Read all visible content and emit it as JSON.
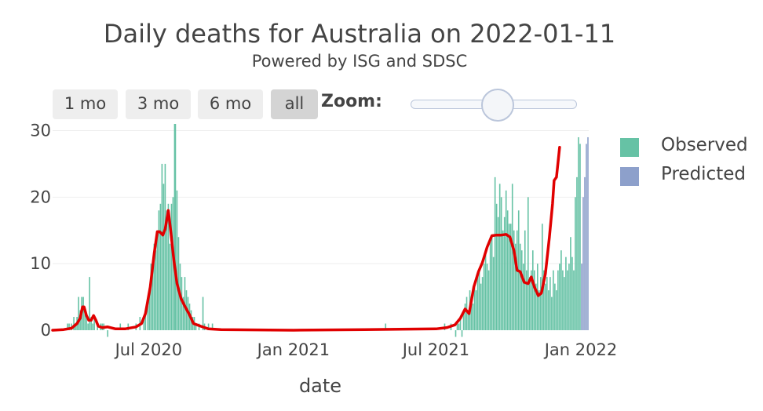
{
  "header": {
    "title": "Daily deaths for Australia on 2022-01-11",
    "subtitle": "Powered by ISG and SDSC"
  },
  "controls": {
    "range_buttons": [
      "1 mo",
      "3 mo",
      "6 mo",
      "all"
    ],
    "active_button": "all",
    "zoom_label": "Zoom:"
  },
  "legend": {
    "items": [
      {
        "label": "Observed",
        "color": "#66c2a5"
      },
      {
        "label": "Predicted",
        "color": "#8da0cb"
      }
    ]
  },
  "colors": {
    "observed": "#66c2a5",
    "predicted": "#8da0cb",
    "trend": "#e00000",
    "grid": "#eeeeee"
  },
  "chart_data": {
    "type": "bar",
    "title": "Daily deaths for Australia on 2022-01-11",
    "subtitle": "Powered by ISG and SDSC",
    "xlabel": "date",
    "ylabel": "",
    "x_range": [
      "2020-03-01",
      "2022-01-11"
    ],
    "ylim": [
      0,
      31
    ],
    "y_ticks": [
      0,
      10,
      20,
      30
    ],
    "x_ticks": [
      {
        "date": "2020-07-01",
        "label": "Jul 2020"
      },
      {
        "date": "2021-01-01",
        "label": "Jan 2021"
      },
      {
        "date": "2021-07-01",
        "label": "Jul 2021"
      },
      {
        "date": "2022-01-01",
        "label": "Jan 2022"
      }
    ],
    "grid": true,
    "legend_position": "right",
    "series": [
      {
        "name": "Observed",
        "kind": "bar",
        "points": [
          [
            "2020-03-20",
            1
          ],
          [
            "2020-03-22",
            1
          ],
          [
            "2020-03-25",
            1
          ],
          [
            "2020-03-28",
            2
          ],
          [
            "2020-03-30",
            1
          ],
          [
            "2020-04-01",
            2
          ],
          [
            "2020-04-03",
            5
          ],
          [
            "2020-04-05",
            3
          ],
          [
            "2020-04-07",
            5
          ],
          [
            "2020-04-09",
            5
          ],
          [
            "2020-04-11",
            3
          ],
          [
            "2020-04-13",
            2
          ],
          [
            "2020-04-15",
            1
          ],
          [
            "2020-04-17",
            8
          ],
          [
            "2020-04-19",
            2
          ],
          [
            "2020-04-21",
            1
          ],
          [
            "2020-04-23",
            2
          ],
          [
            "2020-04-27",
            1
          ],
          [
            "2020-05-01",
            1
          ],
          [
            "2020-05-03",
            1
          ],
          [
            "2020-05-05",
            1
          ],
          [
            "2020-05-10",
            -1
          ],
          [
            "2020-05-26",
            1
          ],
          [
            "2020-06-05",
            1
          ],
          [
            "2020-06-15",
            1
          ],
          [
            "2020-06-20",
            2
          ],
          [
            "2020-06-25",
            2
          ],
          [
            "2020-06-27",
            3
          ],
          [
            "2020-06-30",
            5
          ],
          [
            "2020-07-02",
            6
          ],
          [
            "2020-07-04",
            10
          ],
          [
            "2020-07-06",
            10
          ],
          [
            "2020-07-08",
            13
          ],
          [
            "2020-07-10",
            12
          ],
          [
            "2020-07-12",
            15
          ],
          [
            "2020-07-14",
            18
          ],
          [
            "2020-07-16",
            19
          ],
          [
            "2020-07-18",
            25
          ],
          [
            "2020-07-20",
            22
          ],
          [
            "2020-07-22",
            25
          ],
          [
            "2020-07-24",
            18
          ],
          [
            "2020-07-26",
            19
          ],
          [
            "2020-07-28",
            13
          ],
          [
            "2020-07-30",
            19
          ],
          [
            "2020-08-01",
            20
          ],
          [
            "2020-08-03",
            31
          ],
          [
            "2020-08-04",
            31
          ],
          [
            "2020-08-06",
            21
          ],
          [
            "2020-08-08",
            14
          ],
          [
            "2020-08-10",
            10
          ],
          [
            "2020-08-12",
            8
          ],
          [
            "2020-08-14",
            5
          ],
          [
            "2020-08-16",
            8
          ],
          [
            "2020-08-18",
            6
          ],
          [
            "2020-08-20",
            5
          ],
          [
            "2020-08-22",
            4
          ],
          [
            "2020-08-24",
            3
          ],
          [
            "2020-08-26",
            2
          ],
          [
            "2020-08-28",
            2
          ],
          [
            "2020-08-30",
            1
          ],
          [
            "2020-09-03",
            1
          ],
          [
            "2020-09-08",
            5
          ],
          [
            "2020-09-10",
            1
          ],
          [
            "2020-09-15",
            1
          ],
          [
            "2020-09-20",
            1
          ],
          [
            "2021-04-28",
            1
          ],
          [
            "2021-07-12",
            1
          ],
          [
            "2021-07-20",
            1
          ],
          [
            "2021-07-26",
            -1
          ],
          [
            "2021-07-28",
            1
          ],
          [
            "2021-07-30",
            1
          ],
          [
            "2021-08-01",
            2
          ],
          [
            "2021-08-03",
            -1
          ],
          [
            "2021-08-05",
            3
          ],
          [
            "2021-08-07",
            4
          ],
          [
            "2021-08-09",
            5
          ],
          [
            "2021-08-11",
            3
          ],
          [
            "2021-08-13",
            6
          ],
          [
            "2021-08-15",
            5
          ],
          [
            "2021-08-17",
            4
          ],
          [
            "2021-08-19",
            7
          ],
          [
            "2021-08-21",
            6
          ],
          [
            "2021-08-23",
            8
          ],
          [
            "2021-08-25",
            9
          ],
          [
            "2021-08-27",
            7
          ],
          [
            "2021-08-29",
            8
          ],
          [
            "2021-08-31",
            10
          ],
          [
            "2021-09-02",
            12
          ],
          [
            "2021-09-04",
            10
          ],
          [
            "2021-09-06",
            9
          ],
          [
            "2021-09-08",
            14
          ],
          [
            "2021-09-10",
            14
          ],
          [
            "2021-09-12",
            11
          ],
          [
            "2021-09-14",
            23
          ],
          [
            "2021-09-16",
            19
          ],
          [
            "2021-09-18",
            17
          ],
          [
            "2021-09-20",
            22
          ],
          [
            "2021-09-22",
            20
          ],
          [
            "2021-09-24",
            15
          ],
          [
            "2021-09-26",
            17
          ],
          [
            "2021-09-28",
            21
          ],
          [
            "2021-09-30",
            18
          ],
          [
            "2021-10-02",
            16
          ],
          [
            "2021-10-04",
            16
          ],
          [
            "2021-10-06",
            22
          ],
          [
            "2021-10-08",
            15
          ],
          [
            "2021-10-10",
            13
          ],
          [
            "2021-10-12",
            15
          ],
          [
            "2021-10-14",
            18
          ],
          [
            "2021-10-16",
            13
          ],
          [
            "2021-10-18",
            12
          ],
          [
            "2021-10-20",
            10
          ],
          [
            "2021-10-22",
            15
          ],
          [
            "2021-10-24",
            9
          ],
          [
            "2021-10-26",
            20
          ],
          [
            "2021-10-28",
            8
          ],
          [
            "2021-10-30",
            9
          ],
          [
            "2021-11-01",
            12
          ],
          [
            "2021-11-03",
            9
          ],
          [
            "2021-11-05",
            7
          ],
          [
            "2021-11-07",
            10
          ],
          [
            "2021-11-09",
            6
          ],
          [
            "2021-11-11",
            8
          ],
          [
            "2021-11-13",
            16
          ],
          [
            "2021-11-15",
            9
          ],
          [
            "2021-11-17",
            7
          ],
          [
            "2021-11-19",
            8
          ],
          [
            "2021-11-21",
            6
          ],
          [
            "2021-11-23",
            8
          ],
          [
            "2021-11-25",
            5
          ],
          [
            "2021-11-27",
            9
          ],
          [
            "2021-11-29",
            7
          ],
          [
            "2021-12-01",
            6
          ],
          [
            "2021-12-03",
            9
          ],
          [
            "2021-12-05",
            10
          ],
          [
            "2021-12-07",
            12
          ],
          [
            "2021-12-09",
            9
          ],
          [
            "2021-12-11",
            8
          ],
          [
            "2021-12-13",
            11
          ],
          [
            "2021-12-15",
            9
          ],
          [
            "2021-12-17",
            10
          ],
          [
            "2021-12-19",
            14
          ],
          [
            "2021-12-21",
            11
          ],
          [
            "2021-12-23",
            9
          ],
          [
            "2021-12-25",
            20
          ],
          [
            "2021-12-27",
            23
          ],
          [
            "2021-12-29",
            29
          ],
          [
            "2021-12-31",
            28
          ]
        ]
      },
      {
        "name": "Predicted",
        "kind": "bar",
        "points": [
          [
            "2022-01-02",
            10
          ],
          [
            "2022-01-04",
            20
          ],
          [
            "2022-01-06",
            23
          ],
          [
            "2022-01-08",
            28
          ],
          [
            "2022-01-10",
            29
          ]
        ]
      },
      {
        "name": "Trend",
        "kind": "line",
        "points": [
          [
            "2020-03-01",
            0
          ],
          [
            "2020-03-15",
            0.1
          ],
          [
            "2020-03-25",
            0.3
          ],
          [
            "2020-04-01",
            1.0
          ],
          [
            "2020-04-05",
            1.8
          ],
          [
            "2020-04-08",
            3.5
          ],
          [
            "2020-04-10",
            3.5
          ],
          [
            "2020-04-13",
            2.2
          ],
          [
            "2020-04-16",
            1.5
          ],
          [
            "2020-04-19",
            1.5
          ],
          [
            "2020-04-22",
            2.2
          ],
          [
            "2020-04-25",
            1.5
          ],
          [
            "2020-04-28",
            0.6
          ],
          [
            "2020-05-03",
            0.4
          ],
          [
            "2020-05-10",
            0.5
          ],
          [
            "2020-05-20",
            0.2
          ],
          [
            "2020-06-01",
            0.2
          ],
          [
            "2020-06-15",
            0.5
          ],
          [
            "2020-06-22",
            1.0
          ],
          [
            "2020-06-27",
            2.5
          ],
          [
            "2020-07-03",
            6.5
          ],
          [
            "2020-07-08",
            11.5
          ],
          [
            "2020-07-12",
            14.8
          ],
          [
            "2020-07-15",
            14.8
          ],
          [
            "2020-07-19",
            14.3
          ],
          [
            "2020-07-22",
            15.2
          ],
          [
            "2020-07-26",
            18.0
          ],
          [
            "2020-07-29",
            15.0
          ],
          [
            "2020-08-02",
            10.5
          ],
          [
            "2020-08-06",
            7.0
          ],
          [
            "2020-08-11",
            4.8
          ],
          [
            "2020-08-16",
            3.6
          ],
          [
            "2020-08-22",
            2.3
          ],
          [
            "2020-08-27",
            1.0
          ],
          [
            "2020-09-05",
            0.6
          ],
          [
            "2020-09-15",
            0.2
          ],
          [
            "2020-10-01",
            0.1
          ],
          [
            "2021-01-01",
            0.0
          ],
          [
            "2021-04-01",
            0.1
          ],
          [
            "2021-07-01",
            0.2
          ],
          [
            "2021-07-15",
            0.4
          ],
          [
            "2021-07-25",
            0.8
          ],
          [
            "2021-08-01",
            1.8
          ],
          [
            "2021-08-07",
            3.2
          ],
          [
            "2021-08-12",
            2.5
          ],
          [
            "2021-08-18",
            6.5
          ],
          [
            "2021-08-24",
            8.8
          ],
          [
            "2021-08-29",
            10.2
          ],
          [
            "2021-09-04",
            12.5
          ],
          [
            "2021-09-10",
            14.2
          ],
          [
            "2021-09-16",
            14.3
          ],
          [
            "2021-09-22",
            14.3
          ],
          [
            "2021-09-28",
            14.4
          ],
          [
            "2021-10-03",
            14.0
          ],
          [
            "2021-10-08",
            12.0
          ],
          [
            "2021-10-12",
            9.0
          ],
          [
            "2021-10-16",
            8.8
          ],
          [
            "2021-10-21",
            7.2
          ],
          [
            "2021-10-26",
            7.0
          ],
          [
            "2021-10-30",
            8.0
          ],
          [
            "2021-11-03",
            6.5
          ],
          [
            "2021-11-08",
            5.2
          ],
          [
            "2021-11-12",
            5.6
          ],
          [
            "2021-11-17",
            8.5
          ],
          [
            "2021-11-22",
            14.0
          ],
          [
            "2021-11-26",
            19.0
          ],
          [
            "2021-11-28",
            22.5
          ],
          [
            "2021-12-01",
            23.0
          ],
          [
            "2021-12-05",
            27.5
          ]
        ]
      }
    ]
  }
}
